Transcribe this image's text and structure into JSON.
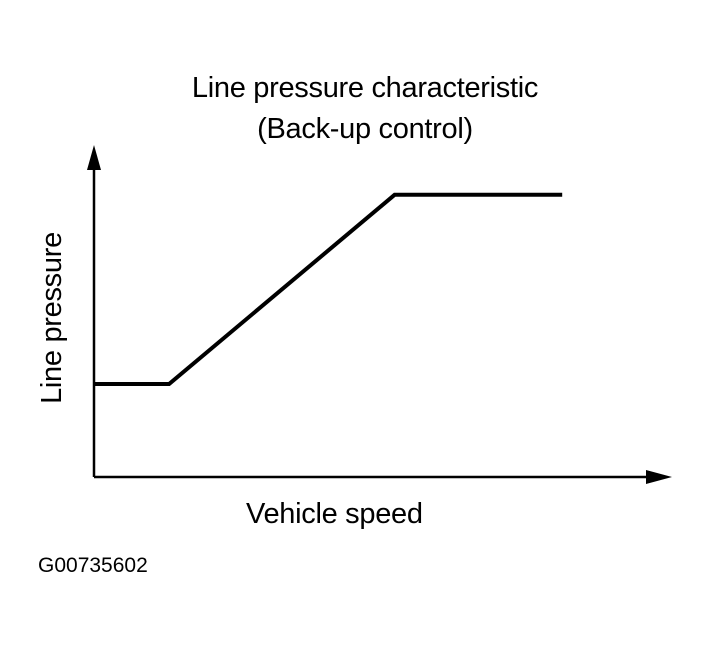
{
  "figure_id": "G00735602",
  "chart_data": {
    "type": "line",
    "title": "Line pressure characteristic",
    "subtitle": "(Back-up control)",
    "xlabel": "Vehicle speed",
    "ylabel": "Line pressure",
    "axis_ticks": false,
    "grid": false,
    "legend": "none",
    "series": [
      {
        "x": [
          0.0,
          0.13,
          0.52,
          0.81
        ],
        "y": [
          0.28,
          0.28,
          0.85,
          0.85
        ]
      }
    ],
    "xlim": [
      0,
      1
    ],
    "ylim": [
      0,
      1
    ]
  }
}
